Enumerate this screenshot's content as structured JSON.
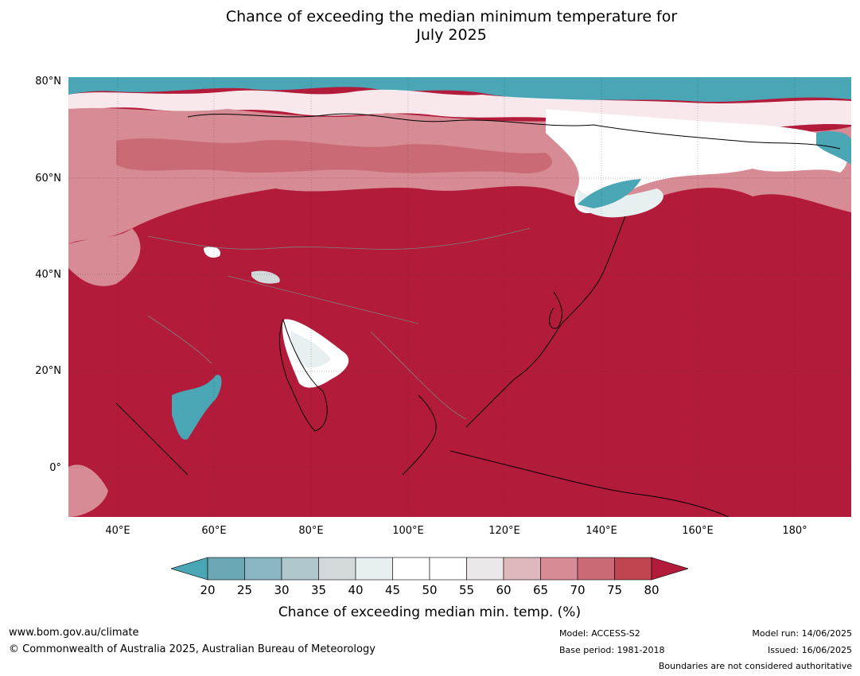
{
  "title": {
    "line1": "Chance of exceeding the median minimum temperature for",
    "line2": "July 2025"
  },
  "map": {
    "lat_labels": [
      "80°N",
      "60°N",
      "40°N",
      "20°N",
      "0°"
    ],
    "lon_labels": [
      "40°E",
      "60°E",
      "80°E",
      "100°E",
      "120°E",
      "140°E",
      "160°E",
      "180°"
    ],
    "background_color": "#b31b3a",
    "coastline_color": "#000000",
    "border_color": "#808080"
  },
  "colorbar": {
    "ticks": [
      "20",
      "25",
      "30",
      "35",
      "40",
      "45",
      "50",
      "55",
      "60",
      "65",
      "70",
      "75",
      "80"
    ],
    "colors": [
      "#4aa5b5",
      "#6aa6b3",
      "#8ab5c2",
      "#aec8ce",
      "#d3d9db",
      "#e8eff0",
      "#ffffff",
      "#ffffff",
      "#ece7e8",
      "#dfb8bd",
      "#d68b95",
      "#c96a74",
      "#bf4651",
      "#b31b3a"
    ],
    "label": "Chance of exceeding median min. temp. (%)"
  },
  "footer": {
    "website": "www.bom.gov.au/climate",
    "copyright": "© Commonwealth of Australia 2025, Australian Bureau of Meteorology",
    "model": "Model: ACCESS-S2",
    "base_period": "Base period: 1981-2018",
    "model_run": "Model run: 14/06/2025",
    "issued": "Issued: 16/06/2025",
    "disclaimer": "Boundaries are not considered authoritative"
  }
}
